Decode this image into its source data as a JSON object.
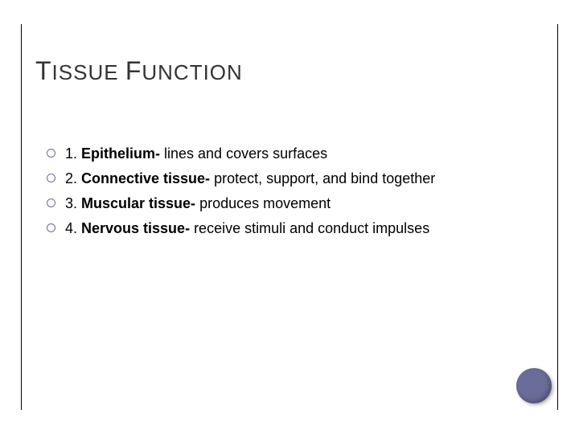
{
  "title": {
    "cap1": "T",
    "word1_rest": "ISSUE",
    "space": " ",
    "cap2": "F",
    "word2_rest": "UNCTION",
    "color": "#333333",
    "small_fontsize": 26,
    "large_fontsize": 32
  },
  "bullets": [
    {
      "num": "1. ",
      "bold": "Epithelium-",
      "rest": " lines and covers surfaces"
    },
    {
      "num": "2. ",
      "bold": "Connective tissue-",
      "rest": " protect, support, and     bind together"
    },
    {
      "num": "3. ",
      "bold": "Muscular tissue-",
      "rest": " produces movement"
    },
    {
      "num": "4. ",
      "bold": "Nervous tissue-",
      "rest": " receive stimuli and conduct impulses"
    }
  ],
  "styling": {
    "bullet_marker_color": "#6a6d97",
    "body_fontsize": 18,
    "body_color": "#000000",
    "background": "#ffffff",
    "border_color": "#000000",
    "deco_circle_color": "#6a6d97"
  }
}
